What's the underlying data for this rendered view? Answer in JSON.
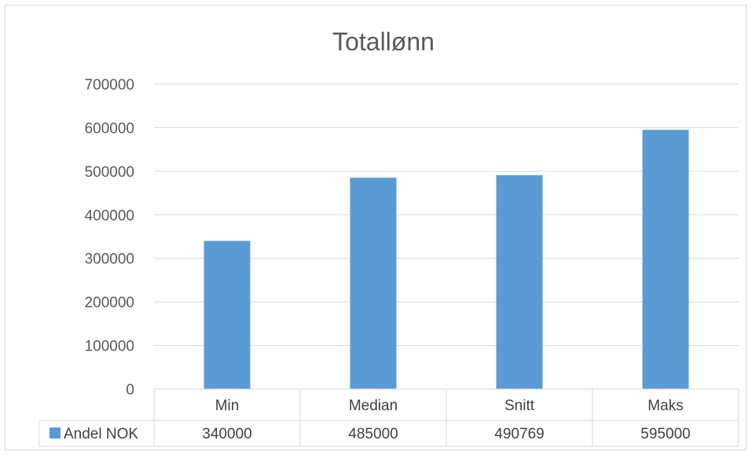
{
  "chart_data": {
    "type": "bar",
    "title": "Totallønn",
    "categories": [
      "Min",
      "Median",
      "Snitt",
      "Maks"
    ],
    "series": [
      {
        "name": "Andel NOK",
        "values": [
          340000,
          485000,
          490769,
          595000
        ],
        "value_labels": [
          "340000",
          "485000",
          "490769",
          "595000"
        ],
        "color": "#5b9bd5"
      }
    ],
    "yticks": [
      "0",
      "100000",
      "200000",
      "300000",
      "400000",
      "500000",
      "600000",
      "700000"
    ],
    "ylim": [
      0,
      700000
    ],
    "grid": true,
    "legend_placement": "data-table",
    "data_table": true
  }
}
